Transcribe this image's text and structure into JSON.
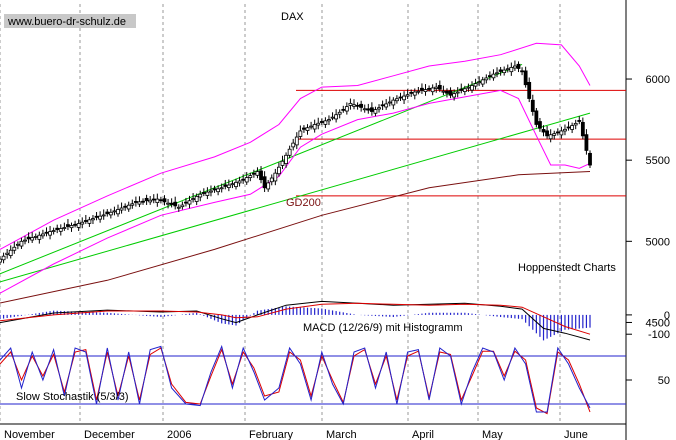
{
  "watermark": "www.buero-dr-schulz.de",
  "colors": {
    "background": "#ffffff",
    "candle_up": "#ffffff",
    "candle_down": "#000000",
    "bollinger": "#ff00ff",
    "trend_line": "#00cc00",
    "horizontal_line": "#dd0000",
    "gd200": "#7a1010",
    "macd_line": "#000000",
    "macd_signal": "#dd0000",
    "macd_hist": "#2222cc",
    "stoch_k": "#2222cc",
    "stoch_d": "#dd0000",
    "stoch_level": "#2222cc",
    "grid": "#999999"
  },
  "chart_data": [
    {
      "type": "candlestick",
      "title": "DAX",
      "source_label": "Hoppenstedt Charts",
      "ylim": [
        4700,
        6450
      ],
      "y_ticks": [
        4500,
        5000,
        5500,
        6000
      ],
      "x_months": [
        "November",
        "December",
        "2006",
        "February",
        "March",
        "April",
        "May",
        "June"
      ],
      "close_path": [
        [
          0,
          4890
        ],
        [
          6,
          5000
        ],
        [
          14,
          5060
        ],
        [
          22,
          5110
        ],
        [
          30,
          5170
        ],
        [
          38,
          5240
        ],
        [
          44,
          5260
        ],
        [
          50,
          5210
        ],
        [
          56,
          5290
        ],
        [
          62,
          5330
        ],
        [
          68,
          5380
        ],
        [
          72,
          5430
        ],
        [
          74,
          5330
        ],
        [
          77,
          5420
        ],
        [
          80,
          5530
        ],
        [
          84,
          5680
        ],
        [
          88,
          5720
        ],
        [
          92,
          5750
        ],
        [
          96,
          5810
        ],
        [
          98,
          5850
        ],
        [
          104,
          5800
        ],
        [
          110,
          5870
        ],
        [
          116,
          5920
        ],
        [
          122,
          5950
        ],
        [
          126,
          5900
        ],
        [
          132,
          5960
        ],
        [
          138,
          6030
        ],
        [
          144,
          6080
        ],
        [
          146,
          6050
        ],
        [
          148,
          5880
        ],
        [
          150,
          5720
        ],
        [
          153,
          5650
        ],
        [
          156,
          5670
        ],
        [
          159,
          5700
        ],
        [
          162,
          5740
        ],
        [
          164,
          5560
        ],
        [
          165,
          5470
        ]
      ],
      "series": [
        {
          "name": "GD200",
          "values": [
            [
              0,
              4620
            ],
            [
              30,
              4760
            ],
            [
              60,
              4950
            ],
            [
              90,
              5160
            ],
            [
              120,
              5330
            ],
            [
              145,
              5410
            ],
            [
              165,
              5430
            ]
          ]
        }
      ],
      "bollinger_upper": [
        [
          0,
          4950
        ],
        [
          15,
          5130
        ],
        [
          30,
          5280
        ],
        [
          45,
          5420
        ],
        [
          60,
          5520
        ],
        [
          70,
          5610
        ],
        [
          78,
          5720
        ],
        [
          84,
          5880
        ],
        [
          90,
          5950
        ],
        [
          100,
          5960
        ],
        [
          110,
          6020
        ],
        [
          120,
          6080
        ],
        [
          130,
          6110
        ],
        [
          140,
          6150
        ],
        [
          150,
          6220
        ],
        [
          157,
          6210
        ],
        [
          162,
          6080
        ],
        [
          165,
          5960
        ]
      ],
      "bollinger_lower": [
        [
          0,
          4680
        ],
        [
          15,
          4860
        ],
        [
          30,
          5020
        ],
        [
          45,
          5160
        ],
        [
          60,
          5240
        ],
        [
          70,
          5290
        ],
        [
          78,
          5400
        ],
        [
          84,
          5580
        ],
        [
          90,
          5660
        ],
        [
          100,
          5750
        ],
        [
          110,
          5790
        ],
        [
          120,
          5850
        ],
        [
          130,
          5890
        ],
        [
          140,
          5930
        ],
        [
          145,
          5880
        ],
        [
          150,
          5650
        ],
        [
          154,
          5470
        ],
        [
          158,
          5470
        ],
        [
          162,
          5450
        ],
        [
          165,
          5480
        ]
      ],
      "trend_lines": [
        {
          "from": [
            0,
            4750
          ],
          "to": [
            165,
            5790
          ]
        },
        {
          "from": [
            0,
            4800
          ],
          "to": [
            146,
            6090
          ]
        }
      ],
      "horizontal_levels": [
        5930,
        5630,
        5280
      ],
      "annotations": [
        "GD200"
      ]
    },
    {
      "type": "line",
      "title": "MACD (12/26/9) mit Histogramm",
      "ylim": [
        -130,
        160
      ],
      "y_ticks": [
        0,
        -100
      ],
      "series": [
        {
          "name": "MACD",
          "values": [
            [
              0,
              -40
            ],
            [
              15,
              10
            ],
            [
              30,
              25
            ],
            [
              45,
              15
            ],
            [
              55,
              20
            ],
            [
              62,
              -20
            ],
            [
              66,
              -40
            ],
            [
              72,
              0
            ],
            [
              80,
              50
            ],
            [
              90,
              70
            ],
            [
              100,
              60
            ],
            [
              110,
              50
            ],
            [
              120,
              55
            ],
            [
              130,
              60
            ],
            [
              140,
              45
            ],
            [
              146,
              30
            ],
            [
              152,
              -70
            ],
            [
              158,
              -95
            ],
            [
              165,
              -130
            ]
          ]
        },
        {
          "name": "Signal",
          "values": [
            [
              0,
              -30
            ],
            [
              15,
              0
            ],
            [
              30,
              20
            ],
            [
              45,
              20
            ],
            [
              55,
              15
            ],
            [
              62,
              0
            ],
            [
              66,
              -15
            ],
            [
              72,
              -10
            ],
            [
              80,
              30
            ],
            [
              90,
              55
            ],
            [
              100,
              60
            ],
            [
              110,
              55
            ],
            [
              120,
              50
            ],
            [
              130,
              55
            ],
            [
              140,
              50
            ],
            [
              146,
              40
            ],
            [
              152,
              -10
            ],
            [
              158,
              -60
            ],
            [
              165,
              -100
            ]
          ]
        }
      ]
    },
    {
      "type": "line",
      "title": "Slow Stochastik (5/3/3)",
      "ylim": [
        0,
        100
      ],
      "y_ticks": [
        50
      ],
      "levels": [
        80,
        20
      ],
      "series": [
        {
          "name": "%K",
          "values": [
            [
              0,
              75
            ],
            [
              3,
              90
            ],
            [
              6,
              40
            ],
            [
              9,
              85
            ],
            [
              12,
              50
            ],
            [
              15,
              88
            ],
            [
              18,
              30
            ],
            [
              21,
              90
            ],
            [
              24,
              85
            ],
            [
              27,
              20
            ],
            [
              30,
              90
            ],
            [
              33,
              25
            ],
            [
              36,
              85
            ],
            [
              39,
              20
            ],
            [
              42,
              88
            ],
            [
              45,
              92
            ],
            [
              48,
              40
            ],
            [
              52,
              20
            ],
            [
              56,
              18
            ],
            [
              59,
              60
            ],
            [
              62,
              92
            ],
            [
              65,
              40
            ],
            [
              68,
              90
            ],
            [
              71,
              60
            ],
            [
              74,
              25
            ],
            [
              78,
              40
            ],
            [
              81,
              90
            ],
            [
              84,
              70
            ],
            [
              87,
              25
            ],
            [
              90,
              85
            ],
            [
              93,
              45
            ],
            [
              96,
              20
            ],
            [
              99,
              85
            ],
            [
              102,
              90
            ],
            [
              105,
              40
            ],
            [
              108,
              85
            ],
            [
              111,
              20
            ],
            [
              114,
              85
            ],
            [
              117,
              88
            ],
            [
              120,
              25
            ],
            [
              123,
              90
            ],
            [
              126,
              80
            ],
            [
              129,
              20
            ],
            [
              132,
              60
            ],
            [
              135,
              90
            ],
            [
              138,
              85
            ],
            [
              141,
              50
            ],
            [
              144,
              90
            ],
            [
              147,
              70
            ],
            [
              150,
              10
            ],
            [
              153,
              10
            ],
            [
              156,
              90
            ],
            [
              159,
              70
            ],
            [
              162,
              40
            ],
            [
              165,
              15
            ]
          ]
        },
        {
          "name": "%D",
          "values": [
            [
              0,
              70
            ],
            [
              3,
              85
            ],
            [
              6,
              50
            ],
            [
              9,
              80
            ],
            [
              12,
              55
            ],
            [
              15,
              82
            ],
            [
              18,
              35
            ],
            [
              21,
              85
            ],
            [
              24,
              88
            ],
            [
              27,
              25
            ],
            [
              30,
              85
            ],
            [
              33,
              30
            ],
            [
              36,
              80
            ],
            [
              39,
              25
            ],
            [
              42,
              82
            ],
            [
              45,
              90
            ],
            [
              48,
              45
            ],
            [
              52,
              22
            ],
            [
              56,
              20
            ],
            [
              59,
              55
            ],
            [
              62,
              88
            ],
            [
              65,
              45
            ],
            [
              68,
              85
            ],
            [
              71,
              65
            ],
            [
              74,
              30
            ],
            [
              78,
              35
            ],
            [
              81,
              85
            ],
            [
              84,
              75
            ],
            [
              87,
              30
            ],
            [
              90,
              80
            ],
            [
              93,
              50
            ],
            [
              96,
              22
            ],
            [
              99,
              80
            ],
            [
              102,
              88
            ],
            [
              105,
              45
            ],
            [
              108,
              80
            ],
            [
              111,
              25
            ],
            [
              114,
              80
            ],
            [
              117,
              86
            ],
            [
              120,
              28
            ],
            [
              123,
              85
            ],
            [
              126,
              82
            ],
            [
              129,
              25
            ],
            [
              132,
              55
            ],
            [
              135,
              86
            ],
            [
              138,
              86
            ],
            [
              141,
              55
            ],
            [
              144,
              86
            ],
            [
              147,
              75
            ],
            [
              150,
              15
            ],
            [
              153,
              8
            ],
            [
              156,
              85
            ],
            [
              159,
              75
            ],
            [
              162,
              45
            ],
            [
              165,
              10
            ]
          ]
        }
      ]
    }
  ]
}
